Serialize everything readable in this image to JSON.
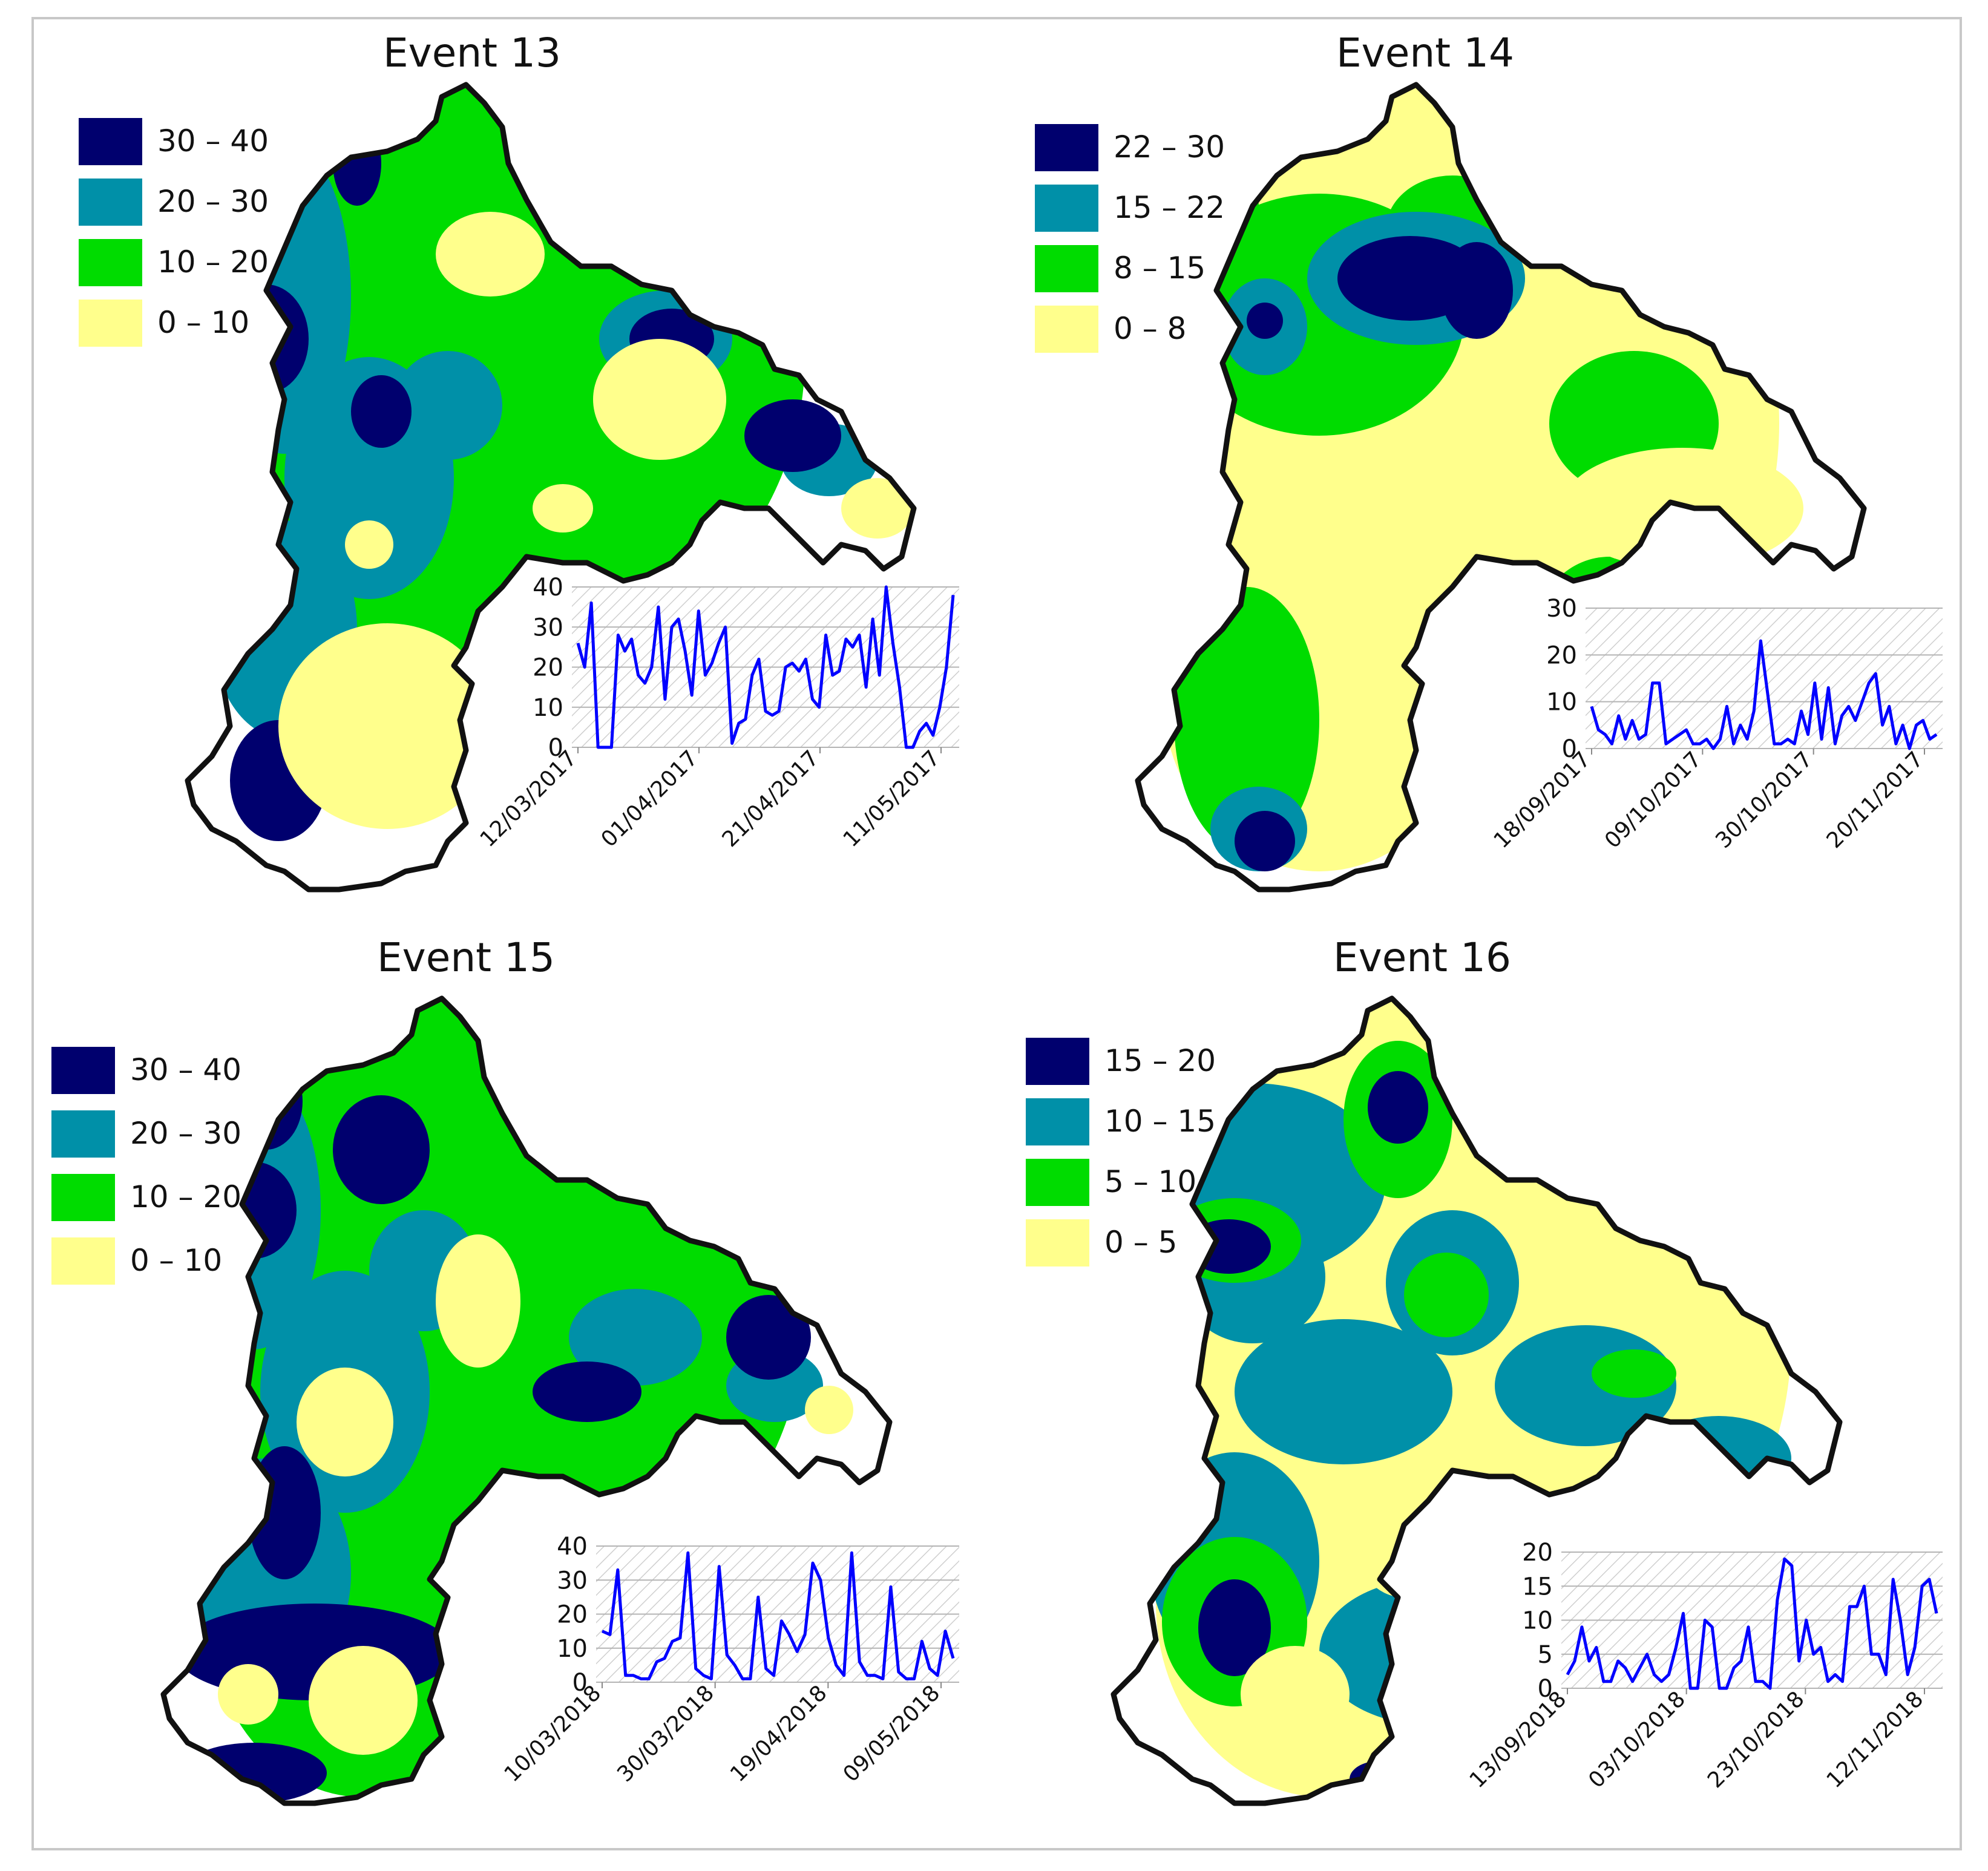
{
  "colors": {
    "class4": "#00006e",
    "class3": "#0090a8",
    "class2": "#00dc00",
    "class1": "#ffff8c",
    "outline": "#111111",
    "series_line": "#0000ff",
    "inset_hatch": "#c8c8c8"
  },
  "panels": [
    {
      "title": "Event 13",
      "legend": [
        "30 – 40",
        "20 – 30",
        "10 – 20",
        "0 – 10"
      ],
      "chart_data": {
        "type": "line",
        "title": "",
        "ylim": [
          0,
          40
        ],
        "yticks": [
          0,
          10,
          20,
          30,
          40
        ],
        "xticks": [
          "12/03/2017",
          "01/04/2017",
          "21/04/2017",
          "11/05/2017"
        ],
        "values": [
          26,
          20,
          36,
          0,
          0,
          0,
          28,
          24,
          27,
          18,
          16,
          20,
          35,
          12,
          30,
          32,
          24,
          13,
          34,
          18,
          21,
          26,
          30,
          1,
          6,
          7,
          18,
          22,
          9,
          8,
          9,
          20,
          21,
          19,
          22,
          12,
          10,
          28,
          18,
          19,
          27,
          25,
          28,
          15,
          32,
          18,
          40,
          26,
          15,
          0,
          0,
          4,
          6,
          3,
          10,
          20,
          38
        ]
      }
    },
    {
      "title": "Event 14",
      "legend": [
        "22 – 30",
        "15 – 22",
        "8 – 15",
        "0 – 8"
      ],
      "chart_data": {
        "type": "line",
        "title": "",
        "ylim": [
          0,
          30
        ],
        "yticks": [
          0,
          10,
          20,
          30
        ],
        "xticks": [
          "18/09/2017",
          "09/10/2017",
          "30/10/2017",
          "20/11/2017"
        ],
        "values": [
          9,
          4,
          3,
          1,
          7,
          2,
          6,
          2,
          3,
          14,
          14,
          1,
          2,
          3,
          4,
          1,
          1,
          2,
          0,
          2,
          9,
          1,
          5,
          2,
          8,
          23,
          12,
          1,
          1,
          2,
          1,
          8,
          3,
          14,
          2,
          13,
          1,
          7,
          9,
          6,
          10,
          14,
          16,
          5,
          9,
          1,
          5,
          0,
          5,
          6,
          2,
          3
        ]
      }
    },
    {
      "title": "Event 15",
      "legend": [
        "30 – 40",
        "20 – 30",
        "10 – 20",
        "0 – 10"
      ],
      "chart_data": {
        "type": "line",
        "title": "",
        "ylim": [
          0,
          40
        ],
        "yticks": [
          0,
          10,
          20,
          30,
          40
        ],
        "xticks": [
          "10/03/2018",
          "30/03/2018",
          "19/04/2018",
          "09/05/2018"
        ],
        "values": [
          15,
          14,
          33,
          2,
          2,
          1,
          1,
          6,
          7,
          12,
          13,
          38,
          4,
          2,
          1,
          34,
          8,
          5,
          1,
          1,
          25,
          4,
          2,
          18,
          14,
          9,
          14,
          35,
          30,
          13,
          5,
          2,
          38,
          6,
          2,
          2,
          1,
          28,
          3,
          1,
          1,
          12,
          4,
          2,
          15,
          7
        ]
      }
    },
    {
      "title": "Event 16",
      "legend": [
        "15 – 20",
        "10 – 15",
        "5 – 10",
        "0 – 5"
      ],
      "chart_data": {
        "type": "line",
        "title": "",
        "ylim": [
          0,
          20
        ],
        "yticks": [
          0,
          5,
          10,
          15,
          20
        ],
        "xticks": [
          "13/09/2018",
          "03/10/2018",
          "23/10/2018",
          "12/11/2018"
        ],
        "values": [
          2,
          4,
          9,
          4,
          6,
          1,
          1,
          4,
          3,
          1,
          3,
          5,
          2,
          1,
          2,
          6,
          11,
          0,
          0,
          10,
          9,
          0,
          0,
          3,
          4,
          9,
          1,
          1,
          0,
          13,
          19,
          18,
          4,
          10,
          5,
          6,
          1,
          2,
          1,
          12,
          12,
          15,
          5,
          5,
          2,
          16,
          10,
          2,
          6,
          15,
          16,
          11
        ]
      }
    }
  ]
}
